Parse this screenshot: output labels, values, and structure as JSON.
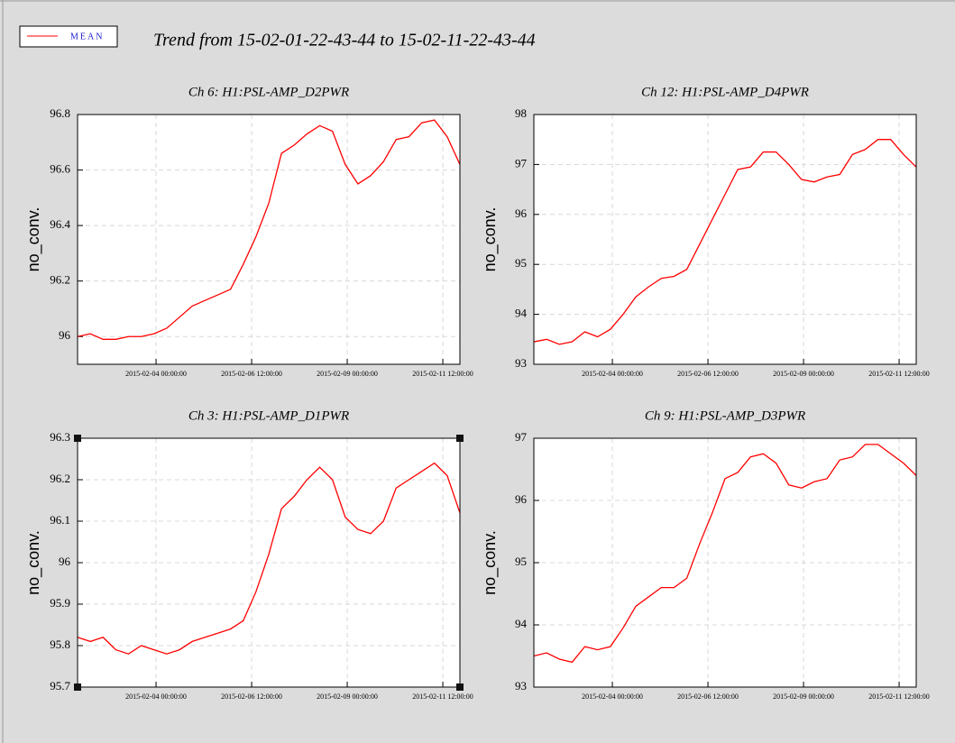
{
  "title": "Trend from 15-02-01-22-43-44 to 15-02-11-22-43-44",
  "legend": {
    "name": "MEAN",
    "color": "#ff0000"
  },
  "chart_data": [
    {
      "type": "line",
      "title": "Ch 6: H1:PSL-AMP_D2PWR",
      "ylabel": "no_conv.",
      "color": "#ff0000",
      "grid": true,
      "xlim": [
        "2015-02-01 22:43:44",
        "2015-02-11 22:43:44"
      ],
      "xticks": [
        "2015-02-04 00:00:00",
        "2015-02-06 12:00:00",
        "2015-02-09 00:00:00",
        "2015-02-11 12:00:00"
      ],
      "ylim": [
        95.9,
        96.8
      ],
      "yticks": [
        96,
        96.2,
        96.4,
        96.6,
        96.8
      ],
      "x": [
        "2015-02-01 22:43:44",
        "2015-02-02 06:43:44",
        "2015-02-02 14:43:44",
        "2015-02-02 22:43:44",
        "2015-02-03 06:43:44",
        "2015-02-03 14:43:44",
        "2015-02-03 22:43:44",
        "2015-02-04 06:43:44",
        "2015-02-04 14:43:44",
        "2015-02-04 22:43:44",
        "2015-02-05 06:43:44",
        "2015-02-05 14:43:44",
        "2015-02-05 22:43:44",
        "2015-02-06 06:43:44",
        "2015-02-06 14:43:44",
        "2015-02-06 22:43:44",
        "2015-02-07 06:43:44",
        "2015-02-07 14:43:44",
        "2015-02-07 22:43:44",
        "2015-02-08 06:43:44",
        "2015-02-08 14:43:44",
        "2015-02-08 22:43:44",
        "2015-02-09 06:43:44",
        "2015-02-09 14:43:44",
        "2015-02-09 22:43:44",
        "2015-02-10 06:43:44",
        "2015-02-10 14:43:44",
        "2015-02-10 22:43:44",
        "2015-02-11 06:43:44",
        "2015-02-11 14:43:44",
        "2015-02-11 22:43:44"
      ],
      "values": [
        96.0,
        96.01,
        95.99,
        95.99,
        96.0,
        96.0,
        96.01,
        96.03,
        96.07,
        96.11,
        96.13,
        96.15,
        96.17,
        96.26,
        96.36,
        96.48,
        96.66,
        96.69,
        96.73,
        96.76,
        96.74,
        96.62,
        96.55,
        96.58,
        96.63,
        96.71,
        96.72,
        96.77,
        96.78,
        96.72,
        96.62
      ]
    },
    {
      "type": "line",
      "title": "Ch 12: H1:PSL-AMP_D4PWR",
      "ylabel": "no_conv.",
      "color": "#ff0000",
      "grid": true,
      "xlim": [
        "2015-02-01 22:43:44",
        "2015-02-11 22:43:44"
      ],
      "xticks": [
        "2015-02-04 00:00:00",
        "2015-02-06 12:00:00",
        "2015-02-09 00:00:00",
        "2015-02-11 12:00:00"
      ],
      "ylim": [
        93,
        98
      ],
      "yticks": [
        93,
        94,
        95,
        96,
        97,
        98
      ],
      "x": [
        "2015-02-01 22:43:44",
        "2015-02-02 06:43:44",
        "2015-02-02 14:43:44",
        "2015-02-02 22:43:44",
        "2015-02-03 06:43:44",
        "2015-02-03 14:43:44",
        "2015-02-03 22:43:44",
        "2015-02-04 06:43:44",
        "2015-02-04 14:43:44",
        "2015-02-04 22:43:44",
        "2015-02-05 06:43:44",
        "2015-02-05 14:43:44",
        "2015-02-05 22:43:44",
        "2015-02-06 06:43:44",
        "2015-02-06 14:43:44",
        "2015-02-06 22:43:44",
        "2015-02-07 06:43:44",
        "2015-02-07 14:43:44",
        "2015-02-07 22:43:44",
        "2015-02-08 06:43:44",
        "2015-02-08 14:43:44",
        "2015-02-08 22:43:44",
        "2015-02-09 06:43:44",
        "2015-02-09 14:43:44",
        "2015-02-09 22:43:44",
        "2015-02-10 06:43:44",
        "2015-02-10 14:43:44",
        "2015-02-10 22:43:44",
        "2015-02-11 06:43:44",
        "2015-02-11 14:43:44",
        "2015-02-11 22:43:44"
      ],
      "values": [
        93.45,
        93.5,
        93.4,
        93.45,
        93.65,
        93.55,
        93.7,
        94.0,
        94.35,
        94.55,
        94.72,
        94.76,
        94.9,
        95.4,
        95.9,
        96.4,
        96.9,
        96.95,
        97.25,
        97.25,
        97.0,
        96.7,
        96.65,
        96.75,
        96.8,
        97.2,
        97.3,
        97.5,
        97.5,
        97.2,
        96.95
      ]
    },
    {
      "type": "line",
      "title": "Ch 3: H1:PSL-AMP_D1PWR",
      "ylabel": "no_conv.",
      "color": "#ff0000",
      "grid": true,
      "selected": true,
      "xlim": [
        "2015-02-01 22:43:44",
        "2015-02-11 22:43:44"
      ],
      "xticks": [
        "2015-02-04 00:00:00",
        "2015-02-06 12:00:00",
        "2015-02-09 00:00:00",
        "2015-02-11 12:00:00"
      ],
      "ylim": [
        95.7,
        96.3
      ],
      "yticks": [
        95.7,
        95.8,
        95.9,
        96,
        96.1,
        96.2,
        96.3
      ],
      "x": [
        "2015-02-01 22:43:44",
        "2015-02-02 06:43:44",
        "2015-02-02 14:43:44",
        "2015-02-02 22:43:44",
        "2015-02-03 06:43:44",
        "2015-02-03 14:43:44",
        "2015-02-03 22:43:44",
        "2015-02-04 06:43:44",
        "2015-02-04 14:43:44",
        "2015-02-04 22:43:44",
        "2015-02-05 06:43:44",
        "2015-02-05 14:43:44",
        "2015-02-05 22:43:44",
        "2015-02-06 06:43:44",
        "2015-02-06 14:43:44",
        "2015-02-06 22:43:44",
        "2015-02-07 06:43:44",
        "2015-02-07 14:43:44",
        "2015-02-07 22:43:44",
        "2015-02-08 06:43:44",
        "2015-02-08 14:43:44",
        "2015-02-08 22:43:44",
        "2015-02-09 06:43:44",
        "2015-02-09 14:43:44",
        "2015-02-09 22:43:44",
        "2015-02-10 06:43:44",
        "2015-02-10 14:43:44",
        "2015-02-10 22:43:44",
        "2015-02-11 06:43:44",
        "2015-02-11 14:43:44",
        "2015-02-11 22:43:44"
      ],
      "values": [
        95.82,
        95.81,
        95.82,
        95.79,
        95.78,
        95.8,
        95.79,
        95.78,
        95.79,
        95.81,
        95.82,
        95.83,
        95.84,
        95.86,
        95.93,
        96.02,
        96.13,
        96.16,
        96.2,
        96.23,
        96.2,
        96.11,
        96.08,
        96.07,
        96.1,
        96.18,
        96.2,
        96.22,
        96.24,
        96.21,
        96.12
      ]
    },
    {
      "type": "line",
      "title": "Ch 9: H1:PSL-AMP_D3PWR",
      "ylabel": "no_conv.",
      "color": "#ff0000",
      "grid": true,
      "xlim": [
        "2015-02-01 22:43:44",
        "2015-02-11 22:43:44"
      ],
      "xticks": [
        "2015-02-04 00:00:00",
        "2015-02-06 12:00:00",
        "2015-02-09 00:00:00",
        "2015-02-11 12:00:00"
      ],
      "ylim": [
        93,
        97
      ],
      "yticks": [
        93,
        94,
        95,
        96,
        97
      ],
      "x": [
        "2015-02-01 22:43:44",
        "2015-02-02 06:43:44",
        "2015-02-02 14:43:44",
        "2015-02-02 22:43:44",
        "2015-02-03 06:43:44",
        "2015-02-03 14:43:44",
        "2015-02-03 22:43:44",
        "2015-02-04 06:43:44",
        "2015-02-04 14:43:44",
        "2015-02-04 22:43:44",
        "2015-02-05 06:43:44",
        "2015-02-05 14:43:44",
        "2015-02-05 22:43:44",
        "2015-02-06 06:43:44",
        "2015-02-06 14:43:44",
        "2015-02-06 22:43:44",
        "2015-02-07 06:43:44",
        "2015-02-07 14:43:44",
        "2015-02-07 22:43:44",
        "2015-02-08 06:43:44",
        "2015-02-08 14:43:44",
        "2015-02-08 22:43:44",
        "2015-02-09 06:43:44",
        "2015-02-09 14:43:44",
        "2015-02-09 22:43:44",
        "2015-02-10 06:43:44",
        "2015-02-10 14:43:44",
        "2015-02-10 22:43:44",
        "2015-02-11 06:43:44",
        "2015-02-11 14:43:44",
        "2015-02-11 22:43:44"
      ],
      "values": [
        93.5,
        93.55,
        93.45,
        93.4,
        93.65,
        93.6,
        93.65,
        93.95,
        94.3,
        94.45,
        94.6,
        94.6,
        94.75,
        95.3,
        95.8,
        96.35,
        96.45,
        96.7,
        96.75,
        96.6,
        96.25,
        96.2,
        96.3,
        96.35,
        96.65,
        96.7,
        96.9,
        96.9,
        96.75,
        96.6,
        96.4
      ]
    }
  ]
}
